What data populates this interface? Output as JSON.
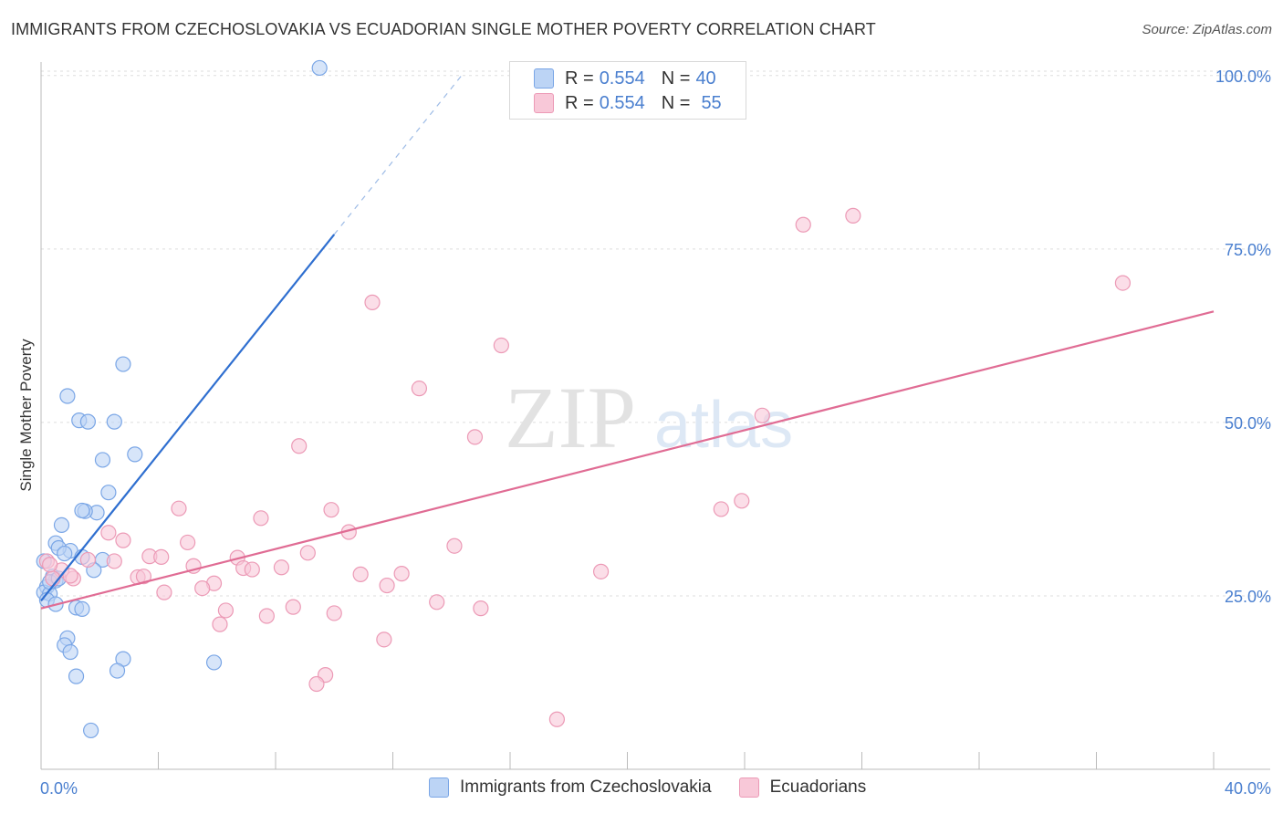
{
  "title": "IMMIGRANTS FROM CZECHOSLOVAKIA VS ECUADORIAN SINGLE MOTHER POVERTY CORRELATION CHART",
  "source": "Source: ZipAtlas.com",
  "watermark": {
    "zip": "ZIP",
    "atlas": "atlas"
  },
  "legend_top": {
    "rows": [
      {
        "r_label": "R =",
        "r_value": "0.554",
        "n_label": "N =",
        "n_value": "40",
        "color": "blue"
      },
      {
        "r_label": "R =",
        "r_value": "0.554",
        "n_label": "N =",
        "n_value": "55",
        "color": "pink"
      }
    ]
  },
  "legend_bottom": [
    {
      "label": "Immigrants from Czechoslovakia",
      "color": "blue"
    },
    {
      "label": "Ecuadorians",
      "color": "pink"
    }
  ],
  "colors": {
    "blue_fill": "#bcd4f5",
    "blue_stroke": "#7aa6e6",
    "blue_line": "#2f6fd0",
    "pink_fill": "#f8c8d8",
    "pink_stroke": "#ec9ab6",
    "pink_line": "#e06c94",
    "tick_label": "#4a7fcf",
    "grid": "#dddddd"
  },
  "chart_data": {
    "type": "scatter",
    "title": "IMMIGRANTS FROM CZECHOSLOVAKIA VS ECUADORIAN SINGLE MOTHER POVERTY CORRELATION CHART",
    "xlabel": "",
    "ylabel": "Single Mother Poverty",
    "xlim": [
      0,
      40
    ],
    "ylim": [
      0,
      103
    ],
    "x_tick_labels": [
      "0.0%",
      "40.0%"
    ],
    "y_ticks": [
      25,
      50,
      75,
      100
    ],
    "y_tick_labels": [
      "25.0%",
      "50.0%",
      "75.0%",
      "100.0%"
    ],
    "series": [
      {
        "name": "Immigrants from Czechoslovakia",
        "color": "blue",
        "points": [
          [
            9.5,
            101.1
          ],
          [
            2.8,
            58.4
          ],
          [
            0.9,
            53.8
          ],
          [
            1.3,
            50.3
          ],
          [
            1.6,
            50.1
          ],
          [
            2.5,
            50.1
          ],
          [
            3.2,
            45.4
          ],
          [
            2.1,
            44.6
          ],
          [
            2.3,
            39.9
          ],
          [
            1.9,
            37.0
          ],
          [
            1.5,
            37.2
          ],
          [
            1.4,
            37.3
          ],
          [
            0.7,
            35.2
          ],
          [
            0.5,
            32.6
          ],
          [
            1.0,
            31.5
          ],
          [
            0.6,
            31.9
          ],
          [
            0.8,
            31.1
          ],
          [
            1.4,
            30.6
          ],
          [
            2.1,
            30.2
          ],
          [
            0.1,
            30.0
          ],
          [
            1.8,
            28.7
          ],
          [
            0.4,
            27.8
          ],
          [
            0.5,
            27.2
          ],
          [
            0.2,
            26.3
          ],
          [
            0.1,
            25.5
          ],
          [
            0.3,
            25.3
          ],
          [
            0.2,
            24.4
          ],
          [
            0.5,
            23.8
          ],
          [
            1.2,
            23.3
          ],
          [
            1.4,
            23.1
          ],
          [
            0.9,
            18.9
          ],
          [
            0.8,
            17.9
          ],
          [
            1.0,
            16.9
          ],
          [
            2.8,
            15.9
          ],
          [
            5.9,
            15.4
          ],
          [
            2.6,
            14.2
          ],
          [
            1.2,
            13.4
          ],
          [
            1.7,
            5.6
          ],
          [
            0.3,
            27.0
          ],
          [
            0.6,
            27.5
          ]
        ],
        "trend": {
          "x": [
            0.0,
            10.0
          ],
          "y": [
            24.3,
            77.1
          ],
          "dashed_to": [
            14.4,
            100.3
          ]
        }
      },
      {
        "name": "Ecuadorians",
        "color": "pink",
        "points": [
          [
            27.7,
            79.8
          ],
          [
            26.0,
            78.5
          ],
          [
            36.9,
            70.1
          ],
          [
            11.3,
            67.3
          ],
          [
            15.7,
            61.1
          ],
          [
            12.9,
            54.9
          ],
          [
            24.6,
            51.0
          ],
          [
            14.8,
            47.9
          ],
          [
            8.8,
            46.6
          ],
          [
            23.9,
            38.7
          ],
          [
            23.2,
            37.5
          ],
          [
            4.7,
            37.6
          ],
          [
            9.9,
            37.4
          ],
          [
            7.5,
            36.2
          ],
          [
            2.3,
            34.1
          ],
          [
            10.5,
            34.2
          ],
          [
            2.8,
            33.0
          ],
          [
            5.0,
            32.7
          ],
          [
            14.1,
            32.2
          ],
          [
            9.1,
            31.2
          ],
          [
            3.7,
            30.7
          ],
          [
            4.1,
            30.6
          ],
          [
            6.7,
            30.5
          ],
          [
            1.6,
            30.2
          ],
          [
            2.5,
            30.0
          ],
          [
            0.2,
            30.0
          ],
          [
            5.2,
            29.3
          ],
          [
            8.2,
            29.1
          ],
          [
            6.9,
            29.0
          ],
          [
            7.2,
            28.8
          ],
          [
            0.7,
            28.7
          ],
          [
            19.1,
            28.5
          ],
          [
            10.9,
            28.1
          ],
          [
            12.3,
            28.2
          ],
          [
            3.3,
            27.7
          ],
          [
            3.5,
            27.8
          ],
          [
            1.1,
            27.5
          ],
          [
            0.4,
            27.5
          ],
          [
            5.9,
            26.8
          ],
          [
            11.8,
            26.5
          ],
          [
            5.5,
            26.1
          ],
          [
            4.2,
            25.5
          ],
          [
            13.5,
            24.1
          ],
          [
            8.6,
            23.4
          ],
          [
            15.0,
            23.2
          ],
          [
            6.3,
            22.9
          ],
          [
            10.0,
            22.5
          ],
          [
            7.7,
            22.1
          ],
          [
            6.1,
            20.9
          ],
          [
            11.7,
            18.7
          ],
          [
            9.7,
            13.6
          ],
          [
            9.4,
            12.3
          ],
          [
            17.6,
            7.2
          ],
          [
            0.3,
            29.5
          ],
          [
            1.0,
            27.9
          ]
        ],
        "trend": {
          "x": [
            0.0,
            40.0
          ],
          "y": [
            23.2,
            66.0
          ]
        }
      }
    ]
  }
}
